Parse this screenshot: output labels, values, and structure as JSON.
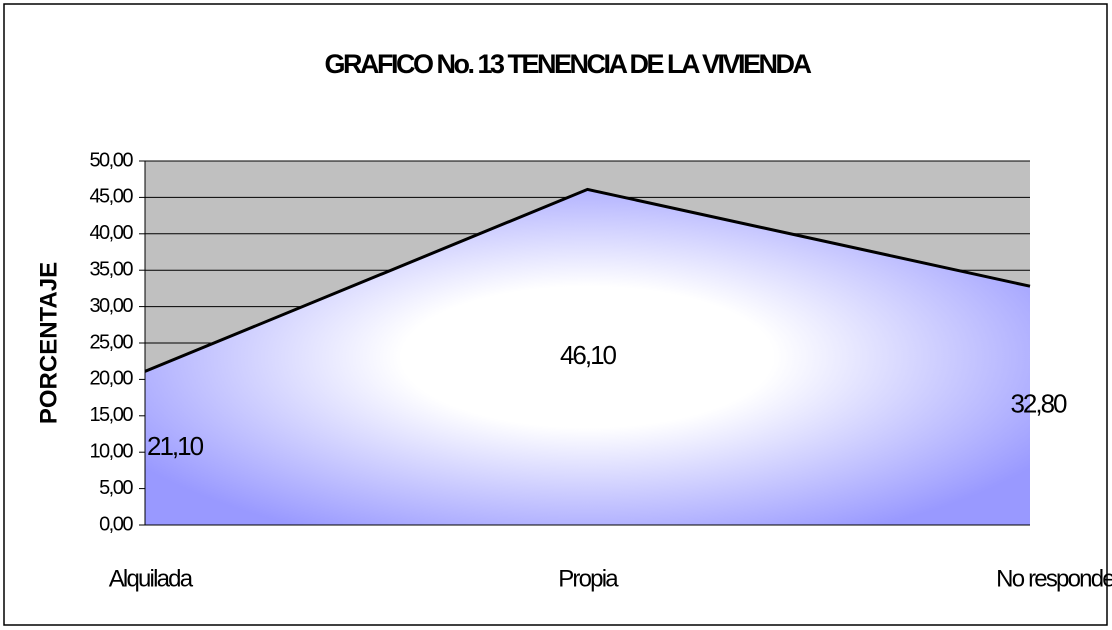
{
  "chart_data": {
    "type": "area",
    "title": "GRAFICO No. 13 TENENCIA DE LA VIVIENDA",
    "ylabel": "PORCENTAJE",
    "categories": [
      "Alquilada",
      "Propia",
      "No responde"
    ],
    "values": [
      21.1,
      46.1,
      32.8
    ],
    "value_labels": [
      "21,10",
      "46,10",
      "32,80"
    ],
    "color": "#9999ff",
    "ylim": [
      0,
      50
    ],
    "yticks": [
      {
        "value": 0,
        "label": "0,00"
      },
      {
        "value": 5,
        "label": "5,00"
      },
      {
        "value": 10,
        "label": "10,00"
      },
      {
        "value": 15,
        "label": "15,00"
      },
      {
        "value": 20,
        "label": "20,00"
      },
      {
        "value": 25,
        "label": "25,00"
      },
      {
        "value": 30,
        "label": "30,00"
      },
      {
        "value": 35,
        "label": "35,00"
      },
      {
        "value": 40,
        "label": "40,00"
      },
      {
        "value": 45,
        "label": "45,00"
      },
      {
        "value": 50,
        "label": "50,00"
      }
    ],
    "grid": true
  }
}
